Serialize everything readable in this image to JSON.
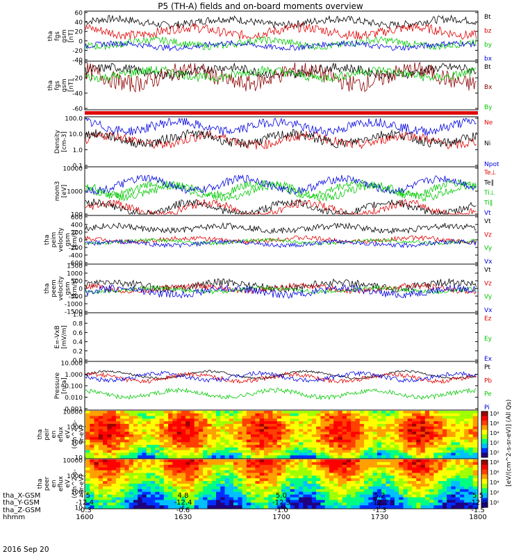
{
  "title": "P5 (TH-A) fields and on-board moments overview",
  "date_label": "2016 Sep 20",
  "colors": {
    "black": "#000000",
    "red": "#e00000",
    "green": "#00c800",
    "blue": "#0000e0",
    "darkred": "#8b0000"
  },
  "x_axis": {
    "ticks": [
      "1600",
      "1630",
      "1700",
      "1730",
      "1800"
    ],
    "rows": [
      {
        "label": "tha_X-GSM",
        "values": [
          "4.5",
          "4.8",
          "5.0",
          "5.2",
          "5.5"
        ]
      },
      {
        "label": "tha_Y-GSM",
        "values": [
          "-12.4",
          "-12.4",
          "-12.3",
          "-12.2",
          "-12.0"
        ]
      },
      {
        "label": "tha_Z-GSM",
        "values": [
          "-0.3",
          "-0.6",
          "-1.0",
          "-1.3",
          "-1.5"
        ]
      },
      {
        "label": "hhmm",
        "values": [
          "1600",
          "1630",
          "1700",
          "1730",
          "1800"
        ]
      }
    ]
  },
  "chart_data": [
    {
      "type": "line",
      "ylabel": [
        "tha",
        "fgs",
        "gsm",
        "[nT]"
      ],
      "ylim": [
        -40,
        60
      ],
      "ticks": [
        "60",
        "40",
        "20",
        "0",
        "-20",
        "-40"
      ],
      "series": [
        {
          "name": "Bt",
          "color": "black",
          "base": 40,
          "amp": 8
        },
        {
          "name": "bz",
          "color": "red",
          "base": 20,
          "amp": 10
        },
        {
          "name": "by",
          "color": "green",
          "base": -5,
          "amp": 8
        },
        {
          "name": "bx",
          "color": "blue",
          "base": -10,
          "amp": 6
        }
      ]
    },
    {
      "type": "line",
      "ylabel": [
        "tha",
        "fgs",
        "gsm",
        "[nT]"
      ],
      "ylim": [
        -70,
        10
      ],
      "ticks": [
        "0",
        "-20",
        "-40",
        "-60"
      ],
      "series": [
        {
          "name": "Bt",
          "color": "black",
          "base": -5,
          "amp": 8
        },
        {
          "name": "Bx",
          "color": "darkred",
          "base": -15,
          "amp": 15
        },
        {
          "name": "By",
          "color": "green",
          "base": -10,
          "amp": 8
        }
      ]
    },
    {
      "type": "line",
      "ylabel": [
        "Density",
        "[cm-3]"
      ],
      "ylim": [
        0.1,
        100
      ],
      "log": true,
      "ticks": [
        "100.0",
        "10.0",
        "1.0",
        "0.1"
      ],
      "series": [
        {
          "name": "Ne",
          "color": "red",
          "base": 4,
          "amp": 0.3
        },
        {
          "name": "Ni",
          "color": "black",
          "base": 5,
          "amp": 0.3
        },
        {
          "name": "Npot",
          "color": "blue",
          "base": 30,
          "amp": 0.3
        }
      ]
    },
    {
      "type": "line",
      "ylabel": [
        "mom3",
        "[eV]"
      ],
      "ylim": [
        50,
        10000
      ],
      "log": true,
      "ticks": [
        "10000",
        "1000",
        "100"
      ],
      "series": [
        {
          "name": "Te⊥",
          "color": "red",
          "base": 90,
          "amp": 0.2
        },
        {
          "name": "Te∥",
          "color": "black",
          "base": 100,
          "amp": 0.2
        },
        {
          "name": "Ti⊥",
          "color": "green",
          "base": 700,
          "amp": 0.2
        },
        {
          "name": "Ti∥",
          "color": "green",
          "base": 900,
          "amp": 0.2
        },
        {
          "name": "Vt",
          "color": "blue",
          "base": 1500,
          "amp": 0.2
        }
      ]
    },
    {
      "type": "line",
      "ylabel": [
        "tha",
        "peim",
        "velocity",
        "gsm",
        "[km/s]"
      ],
      "ylim": [
        -600,
        600
      ],
      "ticks": [
        "600",
        "400",
        "200",
        "0",
        "-200",
        "-400",
        "-600"
      ],
      "series": [
        {
          "name": "Vt",
          "color": "black",
          "base": 300,
          "amp": 80
        },
        {
          "name": "Vz",
          "color": "red",
          "base": 0,
          "amp": 60
        },
        {
          "name": "Vy",
          "color": "green",
          "base": -50,
          "amp": 50
        },
        {
          "name": "Vx",
          "color": "blue",
          "base": -100,
          "amp": 60
        }
      ]
    },
    {
      "type": "line",
      "ylabel": [
        "tha",
        "peem",
        "velocity",
        "gsm",
        "[km/s]"
      ],
      "ylim": [
        -1500,
        1500
      ],
      "ticks": [
        "1500",
        "1000",
        "500",
        "0",
        "-500",
        "-1000",
        "-1500"
      ],
      "series": [
        {
          "name": "Vt",
          "color": "black",
          "base": 200,
          "amp": 250
        },
        {
          "name": "Vz",
          "color": "red",
          "base": 0,
          "amp": 200
        },
        {
          "name": "Vy",
          "color": "green",
          "base": -100,
          "amp": 150
        },
        {
          "name": "Vx",
          "color": "blue",
          "base": -200,
          "amp": 250
        }
      ]
    },
    {
      "type": "line",
      "ylabel": [
        "E=-VxB",
        "[mV/m]"
      ],
      "ylim": [
        0,
        1
      ],
      "ticks": [
        "1.0",
        "0.8",
        "0.6",
        "0.4",
        "0.2",
        "0.0"
      ],
      "series": [
        {
          "name": "Ez",
          "color": "red"
        },
        {
          "name": "Ey",
          "color": "green"
        },
        {
          "name": "Ex",
          "color": "blue"
        }
      ]
    },
    {
      "type": "line",
      "ylabel": [
        "Pressure",
        "[nPa]"
      ],
      "ylim": [
        0.001,
        10
      ],
      "log": true,
      "ticks": [
        "10.000",
        "1.000",
        "0.100",
        "0.010",
        "0.001"
      ],
      "series": [
        {
          "name": "Pt",
          "color": "black",
          "base": 0.9,
          "amp": 0.1
        },
        {
          "name": "Pb",
          "color": "red",
          "base": 0.5,
          "amp": 0.2
        },
        {
          "name": "Pe",
          "color": "green",
          "base": 0.02,
          "amp": 0.2
        },
        {
          "name": "Pi",
          "color": "blue",
          "base": 0.6,
          "amp": 0.2
        }
      ]
    },
    {
      "type": "heatmap",
      "ylabel": [
        "tha",
        "peir",
        "en",
        "eflux",
        "eV",
        "(cm^2-s-",
        "sr-eV)"
      ],
      "ylim": [
        5,
        30000
      ],
      "log": true,
      "ticks": [
        "10000",
        "1000",
        "100",
        "10"
      ],
      "colorbar": {
        "ticks": [
          "10⁸",
          "10⁶",
          "10⁴",
          "10²",
          "10⁰"
        ],
        "label": "[eV/(cm^2-s-sr-eV)] (All Qs)"
      }
    },
    {
      "type": "heatmap",
      "ylabel": [
        "tha",
        "peer",
        "en",
        "eflux",
        "eV",
        "(cm^2-s-",
        "sr-eV)"
      ],
      "ylim": [
        5,
        30000
      ],
      "log": true,
      "ticks": [
        "10000",
        "1000",
        "100",
        "10"
      ],
      "colorbar": {
        "ticks": [
          "10⁸",
          "10⁶",
          "10⁴",
          "10²",
          "10⁰"
        ],
        "label": "[eV/(cm^2-s-sr-eV)] (All Qs)"
      }
    }
  ]
}
